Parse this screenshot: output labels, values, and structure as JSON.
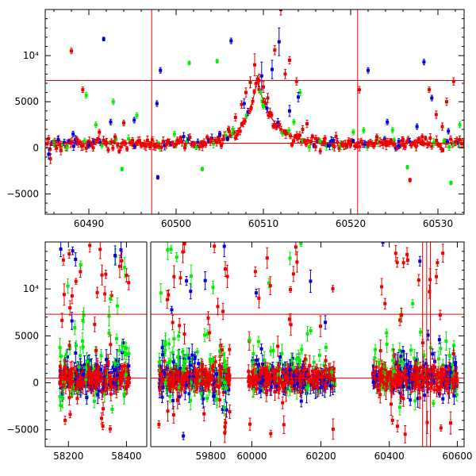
{
  "colors": {
    "red": "#ee0000",
    "green": "#00ee00",
    "blue": "#0000dd",
    "axis": "#000000",
    "model": "#ee0000"
  },
  "chart_data": [
    {
      "type": "scatter",
      "xlim": [
        60485,
        60533
      ],
      "ylim": [
        -7200,
        15000
      ],
      "xticks": [
        60490,
        60500,
        60510,
        60520,
        60530
      ],
      "xtick_labels": [
        "60490",
        "60500",
        "60510",
        "60520",
        "60530"
      ],
      "yticks": [
        -5000,
        0,
        5000,
        10000
      ],
      "ytick_labels": [
        "−5000",
        "0",
        "5000",
        "10⁴"
      ],
      "hlines": [
        500,
        7300
      ],
      "vlines": [
        60497.2,
        60520.8
      ],
      "model_curve": {
        "description": "",
        "baseline": 500,
        "peak_x": 60509.3,
        "peak_y": 7300,
        "width_left": 1.4,
        "width_right": 1.8
      },
      "series": [
        {
          "color_key": "red",
          "points": [
            [
              60485.6,
              -1200,
              500
            ],
            [
              60486.2,
              200,
              400
            ],
            [
              60486.8,
              -300,
              450
            ],
            [
              60487.5,
              100,
              350
            ],
            [
              60488.0,
              10500,
              300
            ],
            [
              60488.6,
              900,
              350
            ],
            [
              60489.3,
              6300,
              300
            ],
            [
              60489.9,
              300,
              350
            ],
            [
              60490.5,
              0,
              350
            ],
            [
              60491.2,
              1700,
              300
            ],
            [
              60492.0,
              500,
              300
            ],
            [
              60493.0,
              1200,
              300
            ],
            [
              60494.0,
              2700,
              300
            ],
            [
              60495.0,
              800,
              300
            ],
            [
              60496.0,
              300,
              300
            ],
            [
              60497.0,
              100,
              300
            ],
            [
              60498.0,
              200,
              300
            ],
            [
              60499.0,
              500,
              300
            ],
            [
              60500.0,
              400,
              300
            ],
            [
              60501.0,
              0,
              300
            ],
            [
              60502.0,
              300,
              300
            ],
            [
              60503.0,
              500,
              300
            ],
            [
              60504.0,
              900,
              300
            ],
            [
              60505.0,
              1400,
              350
            ],
            [
              60506.0,
              2000,
              350
            ],
            [
              60506.8,
              3300,
              400
            ],
            [
              60507.5,
              4700,
              400
            ],
            [
              60508.0,
              6000,
              500
            ],
            [
              60508.5,
              7100,
              600
            ],
            [
              60509.0,
              9000,
              1200
            ],
            [
              60509.5,
              7300,
              700
            ],
            [
              60510.0,
              6600,
              600
            ],
            [
              60510.5,
              5400,
              500
            ],
            [
              60511.3,
              10600,
              500
            ],
            [
              60512.0,
              15000,
              600
            ],
            [
              60512.5,
              8000,
              500
            ],
            [
              60513.0,
              9500,
              400
            ],
            [
              60513.8,
              7200,
              400
            ],
            [
              60514.5,
              2000,
              400
            ],
            [
              60515.0,
              2600,
              400
            ],
            [
              60516.0,
              1000,
              350
            ],
            [
              60517.0,
              500,
              300
            ],
            [
              60518.0,
              300,
              300
            ],
            [
              60519.0,
              400,
              300
            ],
            [
              60520.0,
              300,
              300
            ],
            [
              60521.0,
              6300,
              350
            ],
            [
              60522.0,
              300,
              300
            ],
            [
              60523.0,
              1200,
              300
            ],
            [
              60524.0,
              700,
              300
            ],
            [
              60525.0,
              400,
              300
            ],
            [
              60526.0,
              900,
              300
            ],
            [
              60526.8,
              -3500,
              200
            ],
            [
              60527.5,
              600,
              300
            ],
            [
              60528.2,
              1200,
              300
            ],
            [
              60529.0,
              6300,
              300
            ],
            [
              60529.8,
              3600,
              400
            ],
            [
              60530.5,
              2300,
              400
            ],
            [
              60531.0,
              5000,
              400
            ],
            [
              60531.8,
              7200,
              400
            ],
            [
              60532.5,
              900,
              400
            ]
          ]
        },
        {
          "color_key": "green",
          "points": [
            [
              60486.0,
              500,
              400
            ],
            [
              60487.5,
              0,
              350
            ],
            [
              60489.7,
              5700,
              300
            ],
            [
              60490.8,
              2500,
              300
            ],
            [
              60492.8,
              5000,
              300
            ],
            [
              60493.8,
              -2300,
              200
            ],
            [
              60495.5,
              3500,
              300
            ],
            [
              60499.8,
              1500,
              300
            ],
            [
              60501.5,
              9200,
              200
            ],
            [
              60503.0,
              -2300,
              200
            ],
            [
              60504.7,
              9400,
              200
            ],
            [
              60506.5,
              2000,
              300
            ],
            [
              60510.0,
              4500,
              300
            ],
            [
              60513.5,
              2800,
              300
            ],
            [
              60514.2,
              6000,
              350
            ],
            [
              60516.5,
              700,
              300
            ],
            [
              60520.3,
              1700,
              300
            ],
            [
              60521.5,
              1900,
              300
            ],
            [
              60524.8,
              1900,
              300
            ],
            [
              60526.5,
              -2100,
              200
            ],
            [
              60530.7,
              700,
              300
            ],
            [
              60531.5,
              -3800,
              200
            ],
            [
              60532.5,
              2500,
              300
            ]
          ]
        },
        {
          "color_key": "blue",
          "points": [
            [
              60485.4,
              -700,
              500
            ],
            [
              60486.5,
              900,
              400
            ],
            [
              60488.2,
              1500,
              300
            ],
            [
              60490.0,
              300,
              300
            ],
            [
              60491.7,
              11800,
              200
            ],
            [
              60492.5,
              2800,
              300
            ],
            [
              60495.2,
              3000,
              300
            ],
            [
              60497.8,
              4800,
              300
            ],
            [
              60498.2,
              8400,
              300
            ],
            [
              60497.9,
              -3200,
              200
            ],
            [
              60505.0,
              1500,
              300
            ],
            [
              60506.3,
              11600,
              300
            ],
            [
              60507.8,
              4800,
              500
            ],
            [
              60509.8,
              7800,
              1500
            ],
            [
              60511.0,
              8500,
              1000
            ],
            [
              60511.8,
              11500,
              1500
            ],
            [
              60513.0,
              4000,
              600
            ],
            [
              60514.0,
              5500,
              500
            ],
            [
              60518.0,
              800,
              300
            ],
            [
              60522.0,
              8400,
              300
            ],
            [
              60524.2,
              2800,
              300
            ],
            [
              60525.5,
              200,
              300
            ],
            [
              60527.6,
              2300,
              300
            ],
            [
              60528.4,
              9300,
              300
            ],
            [
              60529.3,
              5400,
              300
            ],
            [
              60531.2,
              1800,
              300
            ]
          ]
        }
      ]
    },
    {
      "type": "scatter",
      "xlim": [
        58120,
        60620
      ],
      "ylim": [
        -6800,
        15000
      ],
      "xticks": [
        58200,
        58400,
        59800,
        60000,
        60200,
        60400,
        60600
      ],
      "xtick_labels": [
        "58200",
        "58400",
        "59800",
        "60000",
        "60200",
        "60400",
        "60600"
      ],
      "yticks": [
        -5000,
        0,
        5000,
        10000
      ],
      "ytick_labels": [
        "−5000",
        "0",
        "5000",
        "10⁴"
      ],
      "hlines": [
        500,
        7300
      ],
      "vlines": [
        60498,
        60510,
        60521
      ],
      "seasons": [
        {
          "start": 58170,
          "end": 58410
        },
        {
          "start": 59610,
          "end": 59870
        },
        {
          "start": 59990,
          "end": 60240
        },
        {
          "start": 60350,
          "end": 60600
        }
      ]
    }
  ]
}
